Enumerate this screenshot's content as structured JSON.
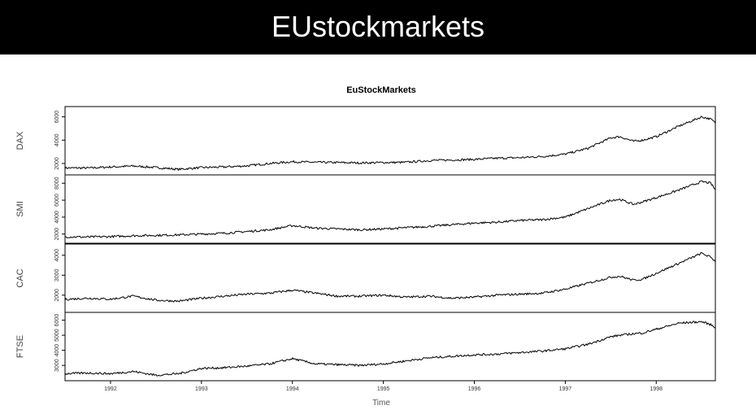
{
  "slide": {
    "title": "EUstockmarkets"
  },
  "chart_data": {
    "type": "line",
    "title": "EuStockMarkets",
    "xlabel": "Time",
    "xlim": [
      1991.5,
      1998.65
    ],
    "x_ticks": [
      1992,
      1993,
      1994,
      1995,
      1996,
      1997,
      1998
    ],
    "x_tick_labels": [
      "1992",
      "1993",
      "1994",
      "1995",
      "1996",
      "1997",
      "1998"
    ],
    "x": [
      1991.5,
      1991.75,
      1992.0,
      1992.25,
      1992.5,
      1992.75,
      1993.0,
      1993.25,
      1993.5,
      1993.75,
      1994.0,
      1994.25,
      1994.5,
      1994.75,
      1995.0,
      1995.25,
      1995.5,
      1995.75,
      1996.0,
      1996.25,
      1996.5,
      1996.75,
      1997.0,
      1997.25,
      1997.5,
      1997.6,
      1997.75,
      1997.85,
      1998.0,
      1998.25,
      1998.5,
      1998.6,
      1998.65
    ],
    "series": [
      {
        "name": "DAX",
        "ylim": [
          1300,
          6600
        ],
        "yticks": [
          2000,
          4000,
          6000
        ],
        "ytick_labels": [
          "2000",
          "4000",
          "6000"
        ],
        "values": [
          1620,
          1610,
          1700,
          1780,
          1650,
          1500,
          1650,
          1700,
          1800,
          2000,
          2150,
          2100,
          2080,
          2050,
          2080,
          2100,
          2250,
          2300,
          2350,
          2450,
          2500,
          2600,
          2800,
          3300,
          4200,
          4300,
          3900,
          4000,
          4300,
          5200,
          6000,
          5800,
          5470
        ]
      },
      {
        "name": "SMI",
        "ylim": [
          1300,
          8600
        ],
        "yticks": [
          2000,
          4000,
          6000,
          8000
        ],
        "ytick_labels": [
          "2000",
          "4000",
          "6000",
          "8000"
        ],
        "values": [
          1680,
          1650,
          1700,
          1800,
          1850,
          1900,
          2000,
          2100,
          2300,
          2500,
          3000,
          2700,
          2600,
          2500,
          2600,
          2750,
          2900,
          3100,
          3300,
          3400,
          3600,
          3700,
          4000,
          5000,
          6000,
          6100,
          5500,
          5800,
          6300,
          7200,
          8200,
          8000,
          7200
        ]
      },
      {
        "name": "CAC",
        "ylim": [
          1300,
          4400
        ],
        "yticks": [
          2000,
          3000,
          4000
        ],
        "ytick_labels": [
          "2000",
          "3000",
          "4000"
        ],
        "values": [
          1790,
          1850,
          1800,
          1950,
          1750,
          1700,
          1850,
          1950,
          2050,
          2100,
          2250,
          2100,
          1950,
          1950,
          2000,
          1900,
          1950,
          1850,
          1900,
          2000,
          2050,
          2100,
          2300,
          2600,
          2900,
          2950,
          2750,
          2800,
          3100,
          3600,
          4100,
          3900,
          3700
        ]
      },
      {
        "name": "FTSE",
        "ylim": [
          2200,
          6300
        ],
        "yticks": [
          3000,
          4000,
          5000,
          6000
        ],
        "ytick_labels": [
          "3000",
          "4000",
          "5000",
          "6000"
        ],
        "values": [
          2450,
          2500,
          2450,
          2600,
          2350,
          2450,
          2800,
          2850,
          2950,
          3100,
          3450,
          3100,
          3050,
          3000,
          3100,
          3300,
          3500,
          3600,
          3700,
          3750,
          3850,
          3950,
          4100,
          4400,
          4900,
          5000,
          5100,
          5150,
          5400,
          5800,
          5900,
          5700,
          5500
        ]
      }
    ]
  }
}
